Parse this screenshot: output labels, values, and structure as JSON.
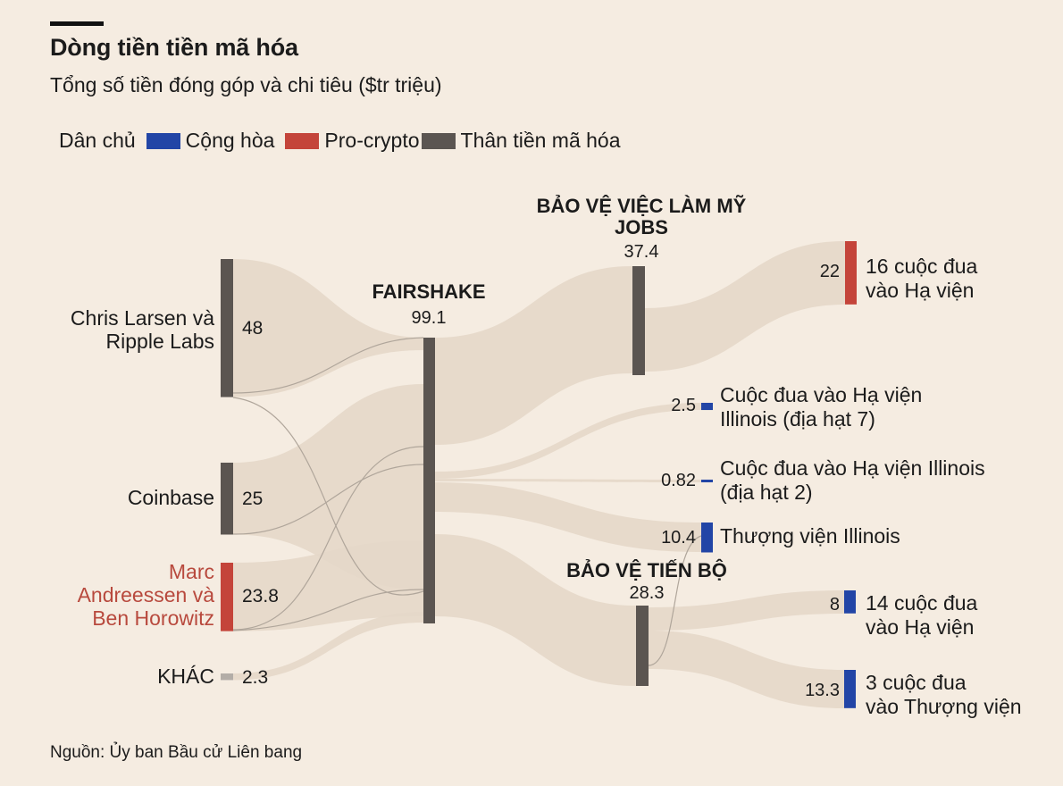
{
  "header": {
    "title": "Dòng tiền tiền mã hóa",
    "subtitle": "Tổng số tiền đóng góp và chi tiêu ($tr triệu)"
  },
  "legend": {
    "items": [
      {
        "label": "Dân chủ",
        "color": "#2245a6"
      },
      {
        "label": "Cộng hòa",
        "color": "#c4443a"
      },
      {
        "label": "Pro-crypto",
        "color": "#5b5551"
      },
      {
        "label": "Thân tiền mã hóa",
        "color": ""
      }
    ]
  },
  "source": "Nguồn: Ủy ban Bầu cử Liên bang",
  "chart_data": {
    "type": "sankey",
    "colors": {
      "democrat": "#2245a6",
      "republican": "#c4443a",
      "procrypto": "#5b5551",
      "other": "#b3ada7",
      "flow": "#e5d8c9"
    },
    "nodes": [
      {
        "id": "larsen",
        "label": [
          "Chris Larsen và",
          "Ripple Labs"
        ],
        "value": 48,
        "value_label": "48",
        "color": "procrypto"
      },
      {
        "id": "coinbase",
        "label": [
          "Coinbase"
        ],
        "value": 25,
        "value_label": "25",
        "color": "procrypto"
      },
      {
        "id": "a16z",
        "label": [
          "Marc",
          "Andreessen và",
          "Ben Horowitz"
        ],
        "value": 23.8,
        "value_label": "23.8",
        "color": "republican",
        "label_color": "#b8493d"
      },
      {
        "id": "khac",
        "label": [
          "KHÁC"
        ],
        "value": 2.3,
        "value_label": "2.3",
        "color": "other"
      },
      {
        "id": "fairshake",
        "label": [
          "FAIRSHAKE"
        ],
        "value": 99.1,
        "value_label": "99.1",
        "color": "procrypto"
      },
      {
        "id": "jobs",
        "label": [
          "BẢO VỆ VIỆC LÀM MỸ",
          "JOBS"
        ],
        "value": 37.4,
        "value_label": "37.4",
        "color": "procrypto"
      },
      {
        "id": "tienbo",
        "label": [
          "BẢO VỆ TIẾN BỘ"
        ],
        "value": 28.3,
        "value_label": "28.3",
        "color": "procrypto"
      },
      {
        "id": "house16",
        "label": [
          "16 cuộc đua",
          "vào Hạ viện"
        ],
        "value": 22,
        "value_label": "22",
        "color": "republican"
      },
      {
        "id": "il7",
        "label": [
          "Cuộc đua vào Hạ viện",
          "Illinois (địa hạt 7)"
        ],
        "value": 2.5,
        "value_label": "2.5",
        "color": "democrat"
      },
      {
        "id": "il2",
        "label": [
          "Cuộc đua vào Hạ viện Illinois",
          "(địa hạt 2)"
        ],
        "value": 0.82,
        "value_label": "0.82",
        "color": "democrat"
      },
      {
        "id": "ilsen",
        "label": [
          "Thượng viện Illinois"
        ],
        "value": 10.4,
        "value_label": "10.4",
        "color": "democrat"
      },
      {
        "id": "house14",
        "label": [
          "14 cuộc đua",
          "vào Hạ viện"
        ],
        "value": 8,
        "value_label": "8",
        "color": "democrat"
      },
      {
        "id": "senate3",
        "label": [
          "3 cuộc đua",
          "vào Thượng viện"
        ],
        "value": 13.3,
        "value_label": "13.3",
        "color": "democrat"
      }
    ],
    "links": [
      {
        "source": "larsen",
        "target": "fairshake",
        "value": 48
      },
      {
        "source": "coinbase",
        "target": "fairshake",
        "value": 25
      },
      {
        "source": "a16z",
        "target": "fairshake",
        "value": 23.8
      },
      {
        "source": "khac",
        "target": "fairshake",
        "value": 2.3
      },
      {
        "source": "fairshake",
        "target": "jobs",
        "value": 37.4
      },
      {
        "source": "fairshake",
        "target": "il7",
        "value": 2.5
      },
      {
        "source": "fairshake",
        "target": "il2",
        "value": 0.82
      },
      {
        "source": "fairshake",
        "target": "ilsen",
        "value": 10.4
      },
      {
        "source": "fairshake",
        "target": "tienbo",
        "value": 28.3
      },
      {
        "source": "jobs",
        "target": "house16",
        "value": 22
      },
      {
        "source": "tienbo",
        "target": "house14",
        "value": 8
      },
      {
        "source": "tienbo",
        "target": "senate3",
        "value": 13.3
      }
    ]
  }
}
